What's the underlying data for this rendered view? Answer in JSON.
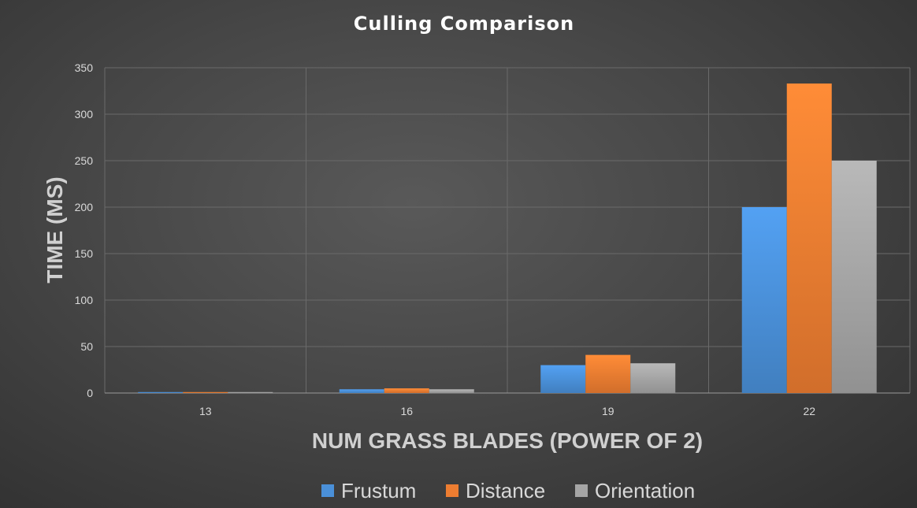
{
  "chart_data": {
    "type": "bar",
    "title": "Culling Comparison",
    "xlabel": "NUM GRASS BLADES (POWER OF 2)",
    "ylabel": "TIME (MS)",
    "categories": [
      "13",
      "16",
      "19",
      "22"
    ],
    "ylim": [
      0,
      350
    ],
    "yticks": [
      0,
      50,
      100,
      150,
      200,
      250,
      300,
      350
    ],
    "grid": true,
    "legend_position": "bottom",
    "series": [
      {
        "name": "Frustum",
        "values": [
          1,
          4,
          30,
          200
        ],
        "color": "#4a90d9"
      },
      {
        "name": "Distance",
        "values": [
          1,
          5,
          41,
          333
        ],
        "color": "#ed7d31"
      },
      {
        "name": "Orientation",
        "values": [
          1,
          4,
          32,
          250
        ],
        "color": "#a5a5a5"
      }
    ]
  }
}
